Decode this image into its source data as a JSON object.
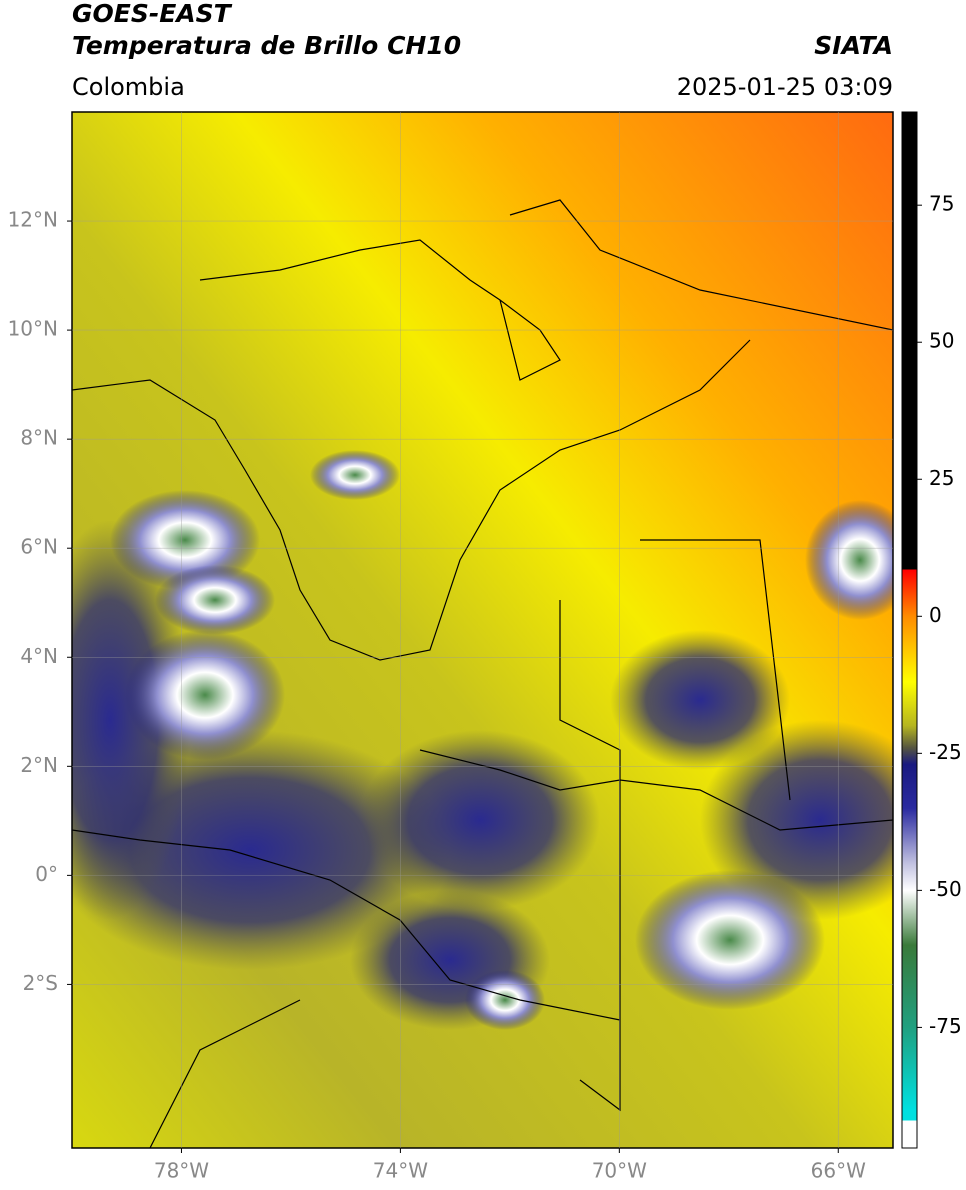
{
  "header": {
    "title": "GOES-EAST",
    "subtitle": "Temperatura de Brillo CH10",
    "source": "SIATA",
    "region": "Colombia",
    "datetime": "2025-01-25 03:09"
  },
  "map": {
    "lonlim": [
      -80,
      -65
    ],
    "latlim": [
      -5,
      14
    ],
    "lonticks": [
      {
        "value": -78,
        "label": "78°W"
      },
      {
        "value": -74,
        "label": "74°W"
      },
      {
        "value": -70,
        "label": "70°W"
      },
      {
        "value": -66,
        "label": "66°W"
      }
    ],
    "latticks": [
      {
        "value": 12,
        "label": "12°N"
      },
      {
        "value": 10,
        "label": "10°N"
      },
      {
        "value": 8,
        "label": "8°N"
      },
      {
        "value": 6,
        "label": "6°N"
      },
      {
        "value": 4,
        "label": "4°N"
      },
      {
        "value": 2,
        "label": "2°N"
      },
      {
        "value": 0,
        "label": "0°"
      },
      {
        "value": -2,
        "label": "2°S"
      }
    ],
    "grid": true
  },
  "colorbar": {
    "range": [
      -97,
      92
    ],
    "ticks": [
      75,
      50,
      25,
      0,
      -25,
      -50,
      -75
    ],
    "stops": [
      [
        92,
        "#000000"
      ],
      [
        8.5,
        "#000000"
      ],
      [
        8.5,
        "#ff0000"
      ],
      [
        0,
        "#ff8c00"
      ],
      [
        -12,
        "#ffff00"
      ],
      [
        -20,
        "#b5b520"
      ],
      [
        -24,
        "#555540"
      ],
      [
        -27,
        "#1a1a80"
      ],
      [
        -35,
        "#2a2aa0"
      ],
      [
        -45,
        "#c0c0e0"
      ],
      [
        -50,
        "#ffffff"
      ],
      [
        -60,
        "#3a7a3a"
      ],
      [
        -75,
        "#20a080"
      ],
      [
        -90,
        "#00e0e0"
      ],
      [
        -92,
        "#00e0e0"
      ],
      [
        -92,
        "#ffffff"
      ],
      [
        -97,
        "#ffffff"
      ]
    ]
  }
}
